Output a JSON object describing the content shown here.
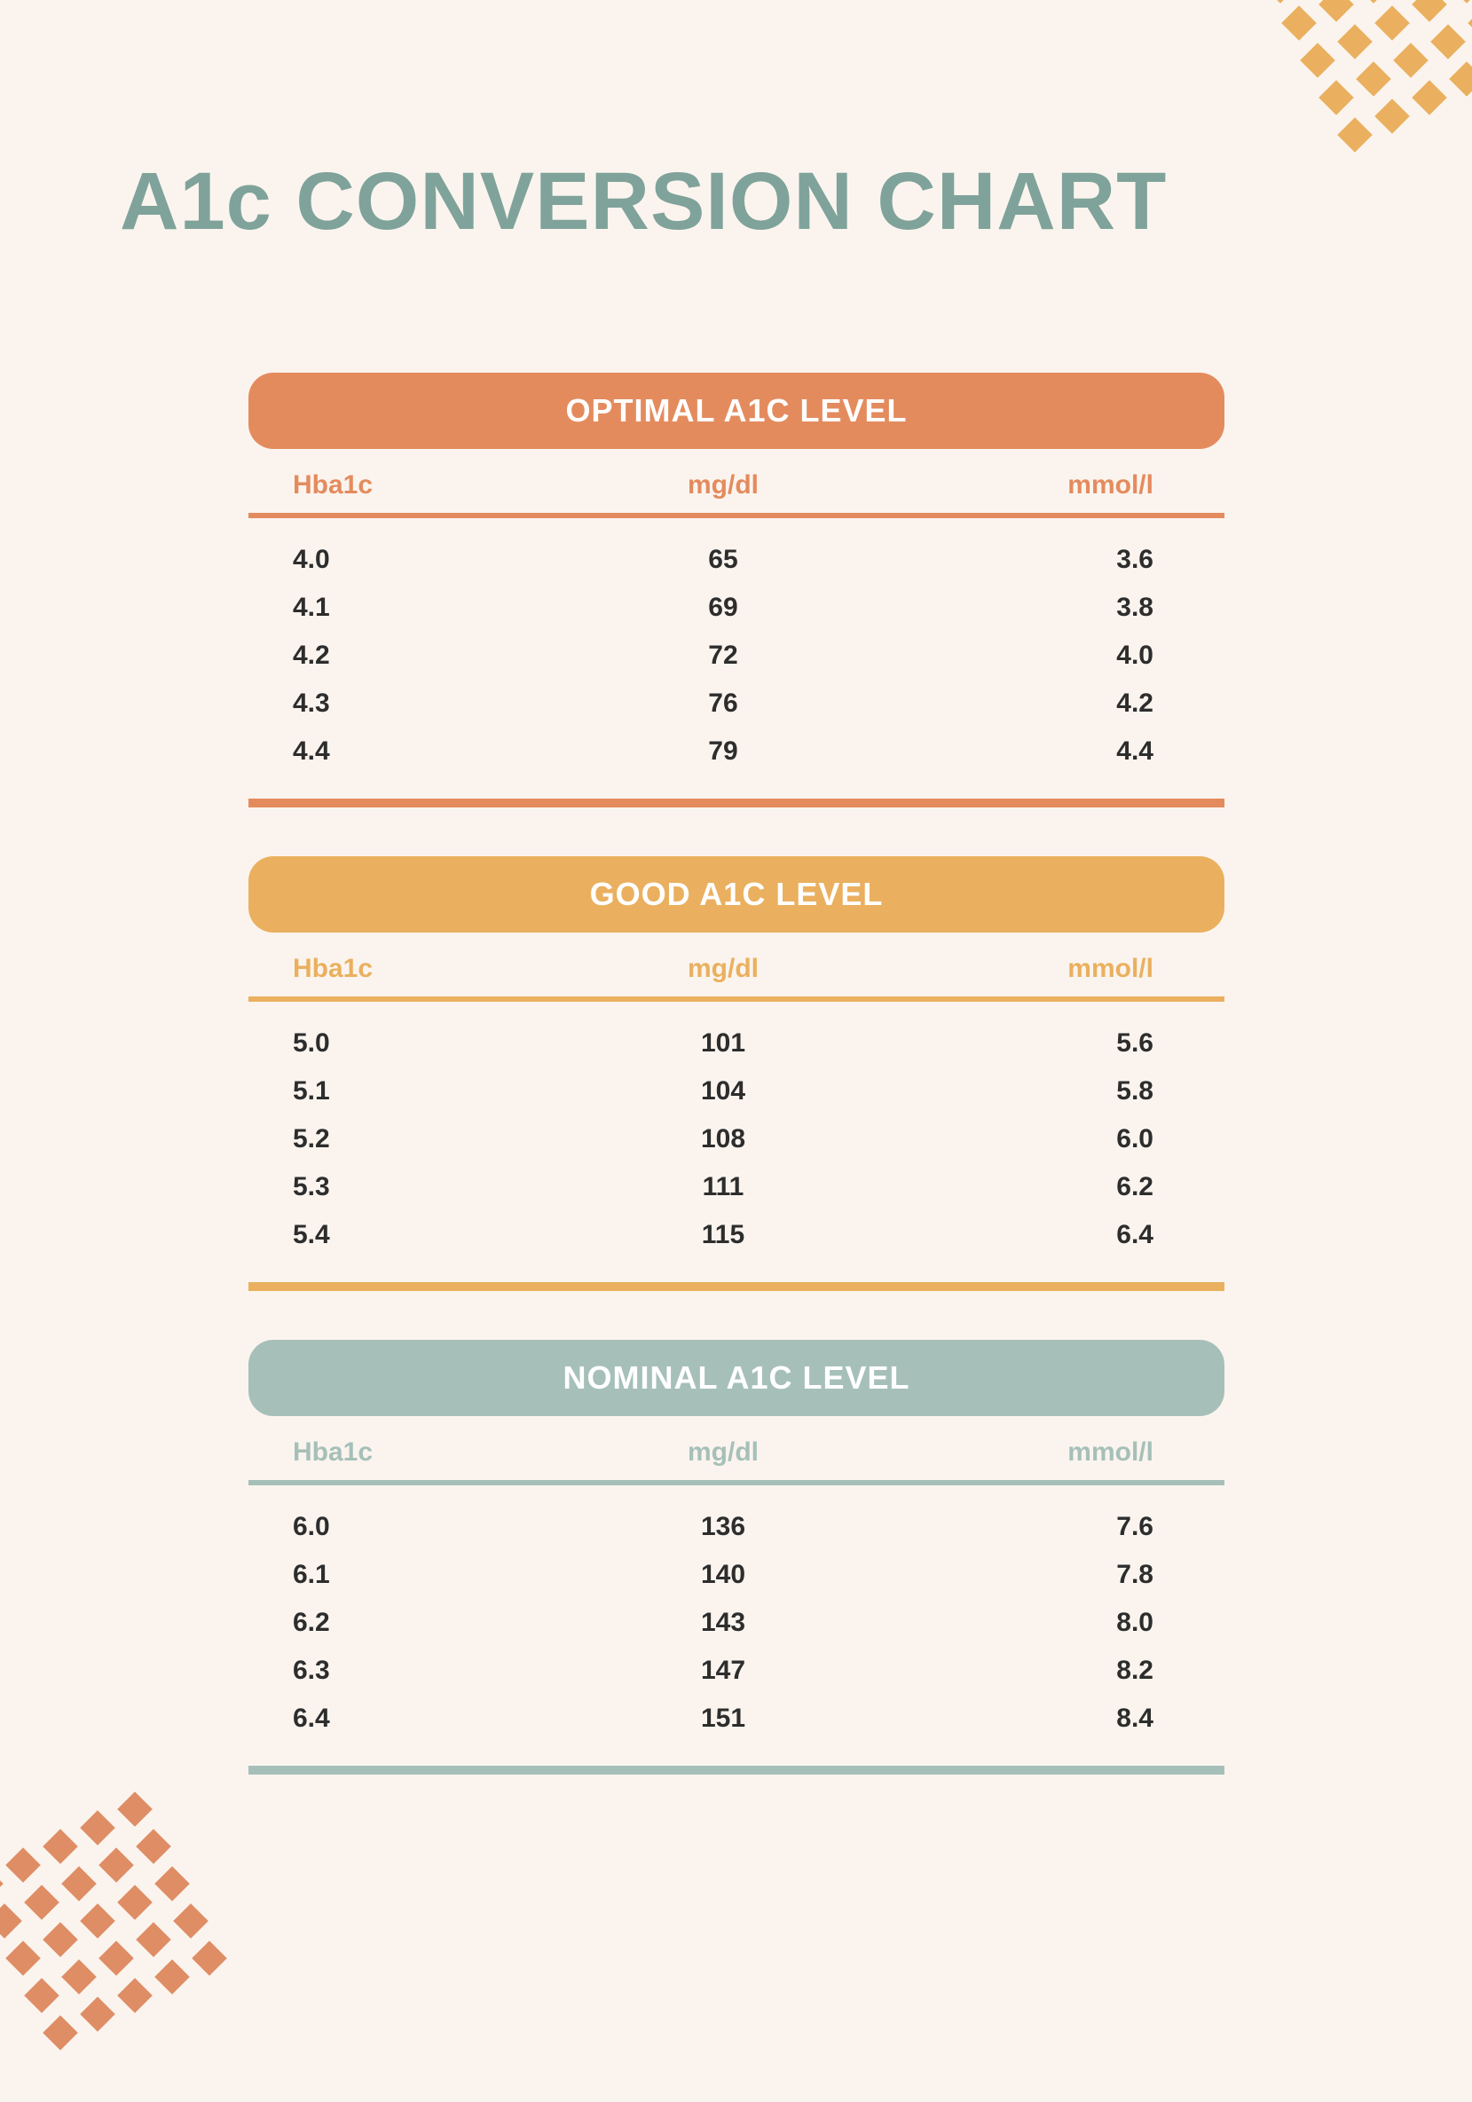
{
  "title": "A1c CONVERSION CHART",
  "title_color": "#7fa39a",
  "title_fontsize": 92,
  "background_color": "#fbf4ee",
  "decoration": {
    "top_right_color": "#eab05f",
    "bottom_left_color": "#df8d65",
    "diamond_size": 28,
    "spacing": 42
  },
  "columns": [
    "Hba1c",
    "mg/dl",
    "mmol/l"
  ],
  "sections": [
    {
      "label": "OPTIMAL A1C LEVEL",
      "header_bg": "#e48b5e",
      "header_text_color": "#e48b5e",
      "rule_color": "#e48b5e",
      "bottom_rule_color": "#e48b5e",
      "rows": [
        [
          "4.0",
          "65",
          "3.6"
        ],
        [
          "4.1",
          "69",
          "3.8"
        ],
        [
          "4.2",
          "72",
          "4.0"
        ],
        [
          "4.3",
          "76",
          "4.2"
        ],
        [
          "4.4",
          "79",
          "4.4"
        ]
      ]
    },
    {
      "label": "GOOD A1C LEVEL",
      "header_bg": "#eab05f",
      "header_text_color": "#eab05f",
      "rule_color": "#eab05f",
      "bottom_rule_color": "#eab05f",
      "rows": [
        [
          "5.0",
          "101",
          "5.6"
        ],
        [
          "5.1",
          "104",
          "5.8"
        ],
        [
          "5.2",
          "108",
          "6.0"
        ],
        [
          "5.3",
          "111",
          "6.2"
        ],
        [
          "5.4",
          "115",
          "6.4"
        ]
      ]
    },
    {
      "label": "NOMINAL A1C LEVEL",
      "header_bg": "#a6c0b9",
      "header_text_color": "#a6c0b9",
      "rule_color": "#a6c0b9",
      "bottom_rule_color": "#a6c0b9",
      "rows": [
        [
          "6.0",
          "136",
          "7.6"
        ],
        [
          "6.1",
          "140",
          "7.8"
        ],
        [
          "6.2",
          "143",
          "8.0"
        ],
        [
          "6.3",
          "147",
          "8.2"
        ],
        [
          "6.4",
          "151",
          "8.4"
        ]
      ]
    }
  ]
}
